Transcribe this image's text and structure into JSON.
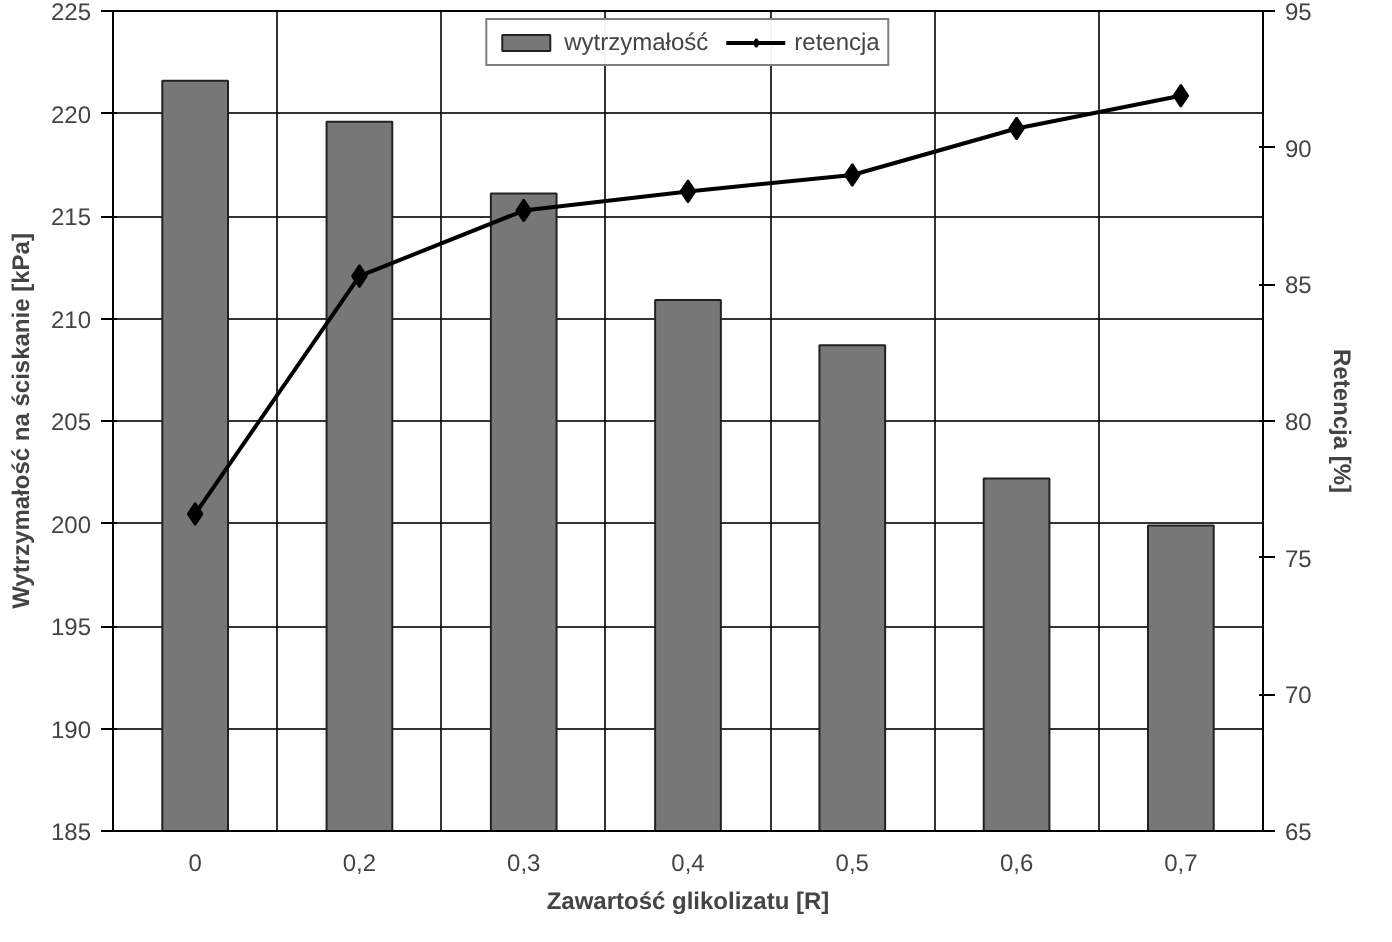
{
  "chart_data": {
    "type": "bar",
    "xlabel": "Zawartość glikolizatu [R]",
    "ylabel": "Wytrzymałość na ściskanie [kPa]",
    "y2label": "Retencja [%]",
    "categories": [
      "0",
      "0,2",
      "0,3",
      "0,4",
      "0,5",
      "0,6",
      "0,7"
    ],
    "series": [
      {
        "name": "wytrzymałość",
        "color": "#777777",
        "values": [
          221.6,
          219.6,
          216.1,
          210.9,
          208.7,
          202.2,
          199.9
        ]
      },
      {
        "name": "retencja",
        "type": "line",
        "axis": "y2",
        "color": "#000000",
        "marker": "diamond",
        "values": [
          76.6,
          85.3,
          87.7,
          88.4,
          89.0,
          90.7,
          91.9
        ]
      }
    ],
    "ylim": [
      185,
      225
    ],
    "yticks": [
      185,
      190,
      195,
      200,
      205,
      210,
      215,
      220,
      225
    ],
    "y2lim": [
      65,
      95
    ],
    "y2ticks": [
      65,
      70,
      75,
      80,
      85,
      90,
      95
    ],
    "grid": true,
    "legend": "top"
  }
}
